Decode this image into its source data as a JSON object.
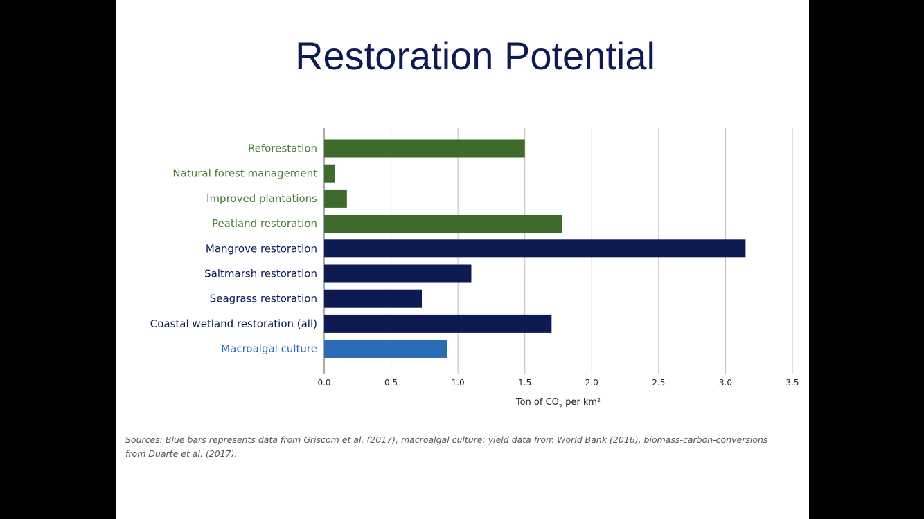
{
  "slide": {
    "title": "Restoration Potential",
    "sources": "Sources: Blue bars represents data from Griscom et al. (2017), macroalgal culture: yield data from World Bank (2016), biomass-carbon-conversions from Duarte et al. (2017)."
  },
  "chart_data": {
    "type": "bar",
    "orientation": "horizontal",
    "categories": [
      "Reforestation",
      "Natural forest management",
      "Improved plantations",
      "Peatland restoration",
      "Mangrove restoration",
      "Saltmarsh restoration",
      "Seagrass restoration",
      "Coastal wetland restoration (all)",
      "Macroalgal culture"
    ],
    "values": [
      1.5,
      0.08,
      0.17,
      1.78,
      3.15,
      1.1,
      0.73,
      1.7,
      0.92
    ],
    "colors": [
      "#3e6b2b",
      "#3e6b2b",
      "#3e6b2b",
      "#3e6b2b",
      "#0e1a52",
      "#0e1a52",
      "#0e1a52",
      "#0e1a52",
      "#2a6cb5"
    ],
    "label_colors": [
      "#4a7a36",
      "#4a7a36",
      "#4a7a36",
      "#4a7a36",
      "#0e1a52",
      "#0e1a52",
      "#0e1a52",
      "#0e1a52",
      "#2a6cb5"
    ],
    "xlim": [
      0,
      3.5
    ],
    "xticks": [
      "0.0",
      "0.5",
      "1.0",
      "1.5",
      "2.0",
      "2.5",
      "3.0",
      "3.5"
    ],
    "xlabel": "Ton of CO",
    "xlabel_sub": "2",
    "xlabel_rest": " per km",
    "xlabel_sup": "2",
    "grid": true
  }
}
